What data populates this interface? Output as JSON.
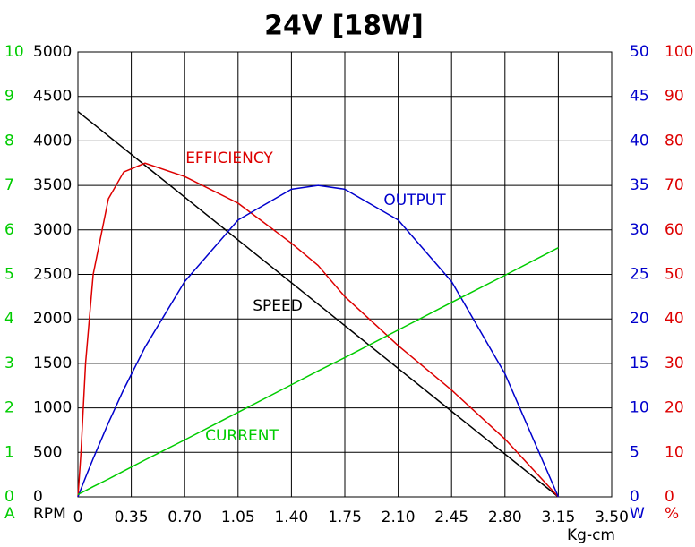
{
  "chart_data": {
    "type": "line",
    "title": "24V [18W]",
    "xlabel": "Kg-cm",
    "x": [
      0,
      0.02,
      0.05,
      0.1,
      0.2,
      0.3,
      0.44,
      0.7,
      1.05,
      1.4,
      1.575,
      1.75,
      2.1,
      2.45,
      2.8,
      3.15
    ],
    "xlim": [
      0,
      3.5
    ],
    "xticks": [
      0,
      0.35,
      {
        "value": 0.7,
        "label": "0.70"
      },
      1.05,
      {
        "value": 1.4,
        "label": "1.40"
      },
      1.75,
      {
        "value": 2.1,
        "label": "2.10"
      },
      2.45,
      {
        "value": 2.8,
        "label": "2.80"
      },
      3.15,
      {
        "value": 3.5,
        "label": "3.50"
      }
    ],
    "grid": true,
    "axes": [
      {
        "label": "A",
        "color": "#00cc00",
        "side": "left",
        "lim": [
          0,
          10
        ],
        "ticks": [
          0,
          1,
          2,
          3,
          4,
          5,
          6,
          7,
          8,
          9,
          10
        ]
      },
      {
        "label": "RPM",
        "color": "#000000",
        "side": "left",
        "lim": [
          0,
          5000
        ],
        "ticks": [
          0,
          500,
          1000,
          1500,
          2000,
          2500,
          3000,
          3500,
          4000,
          4500,
          5000
        ]
      },
      {
        "label": "W",
        "color": "#0000cc",
        "side": "right",
        "lim": [
          0,
          50
        ],
        "ticks": [
          0,
          5,
          10,
          15,
          20,
          25,
          30,
          35,
          40,
          45,
          50
        ]
      },
      {
        "label": "%",
        "color": "#dd0000",
        "side": "right",
        "lim": [
          0,
          100
        ],
        "ticks": [
          0,
          10,
          20,
          30,
          40,
          50,
          60,
          70,
          80,
          90,
          100
        ]
      }
    ],
    "series": [
      {
        "name": "SPEED",
        "color": "#000000",
        "axis": 1,
        "values": [
          4330,
          4303,
          4261,
          4193,
          4055,
          3918,
          3725,
          3368,
          2887,
          2406,
          2165,
          1924,
          1443,
          962,
          481,
          0
        ]
      },
      {
        "name": "EFFICIENCY",
        "color": "#dd0000",
        "axis": 3,
        "values": [
          0,
          10,
          30,
          50,
          67,
          73,
          75,
          72,
          66,
          57,
          52,
          45,
          34,
          24,
          13,
          0
        ]
      },
      {
        "name": "OUTPUT",
        "color": "#0000cc",
        "axis": 2,
        "values": [
          0,
          0.88,
          2.19,
          4.3,
          8.32,
          12.06,
          16.82,
          24.2,
          31.11,
          34.57,
          35,
          34.57,
          31.11,
          24.2,
          13.83,
          0
        ]
      },
      {
        "name": "CURRENT",
        "color": "#00cc00",
        "axis": 0,
        "values": [
          0.05,
          0.09,
          0.14,
          0.23,
          0.4,
          0.58,
          0.83,
          1.28,
          1.9,
          2.52,
          2.83,
          3.13,
          3.75,
          4.37,
          4.98,
          5.6
        ]
      }
    ]
  }
}
